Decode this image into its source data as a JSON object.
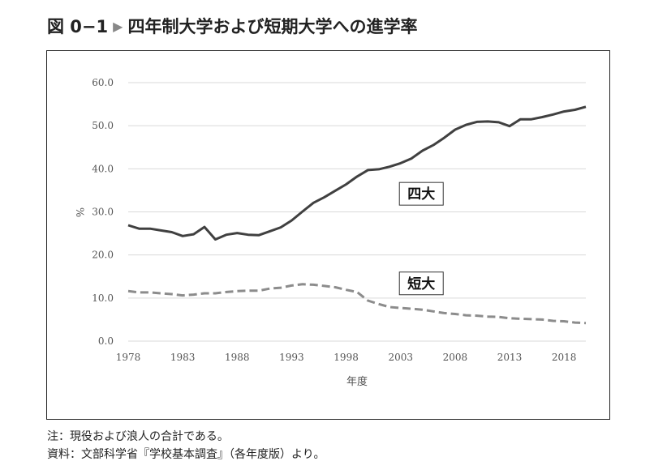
{
  "figure": {
    "number": "図 0−1",
    "title": "四年制大学および短期大学への進学率"
  },
  "notes": {
    "note": "注：現役および浪人の合計である。",
    "source": "資料：文部科学省『学校基本調査』（各年度版）より。"
  },
  "colors": {
    "series_4yr": "#404040",
    "series_junior": "#8c8c8c",
    "grid": "#d9d9d9"
  },
  "chart_data": {
    "type": "line",
    "xlabel": "年度",
    "ylabel": "%",
    "ylim": [
      0,
      60
    ],
    "yticks": [
      "0.0",
      "10.0",
      "20.0",
      "30.0",
      "40.0",
      "50.0",
      "60.0"
    ],
    "xticks": [
      "1978",
      "1983",
      "1988",
      "1993",
      "1998",
      "2003",
      "2008",
      "2013",
      "2018"
    ],
    "grid": "horizontal",
    "x": [
      1978,
      1979,
      1980,
      1981,
      1982,
      1983,
      1984,
      1985,
      1986,
      1987,
      1988,
      1989,
      1990,
      1991,
      1992,
      1993,
      1994,
      1995,
      1996,
      1997,
      1998,
      1999,
      2000,
      2001,
      2002,
      2003,
      2004,
      2005,
      2006,
      2007,
      2008,
      2009,
      2010,
      2011,
      2012,
      2013,
      2014,
      2015,
      2016,
      2017,
      2018,
      2019,
      2020
    ],
    "series": [
      {
        "name": "四大",
        "style": "solid",
        "values": [
          26.9,
          26.1,
          26.1,
          25.7,
          25.3,
          24.4,
          24.8,
          26.5,
          23.6,
          24.7,
          25.1,
          24.7,
          24.6,
          25.5,
          26.4,
          28.0,
          30.1,
          32.1,
          33.4,
          34.9,
          36.4,
          38.2,
          39.7,
          39.9,
          40.5,
          41.3,
          42.4,
          44.2,
          45.5,
          47.2,
          49.1,
          50.2,
          50.9,
          51.0,
          50.8,
          49.9,
          51.5,
          51.5,
          52.0,
          52.6,
          53.3,
          53.7,
          54.4
        ]
      },
      {
        "name": "短大",
        "style": "dashed",
        "values": [
          11.6,
          11.3,
          11.3,
          11.1,
          10.9,
          10.6,
          10.8,
          11.1,
          11.1,
          11.4,
          11.6,
          11.7,
          11.7,
          12.2,
          12.4,
          12.9,
          13.2,
          13.1,
          12.8,
          12.5,
          11.9,
          11.4,
          9.4,
          8.6,
          7.9,
          7.7,
          7.5,
          7.3,
          6.9,
          6.5,
          6.3,
          6.0,
          5.9,
          5.7,
          5.6,
          5.3,
          5.2,
          5.1,
          5.0,
          4.7,
          4.6,
          4.3,
          4.2
        ]
      }
    ]
  }
}
